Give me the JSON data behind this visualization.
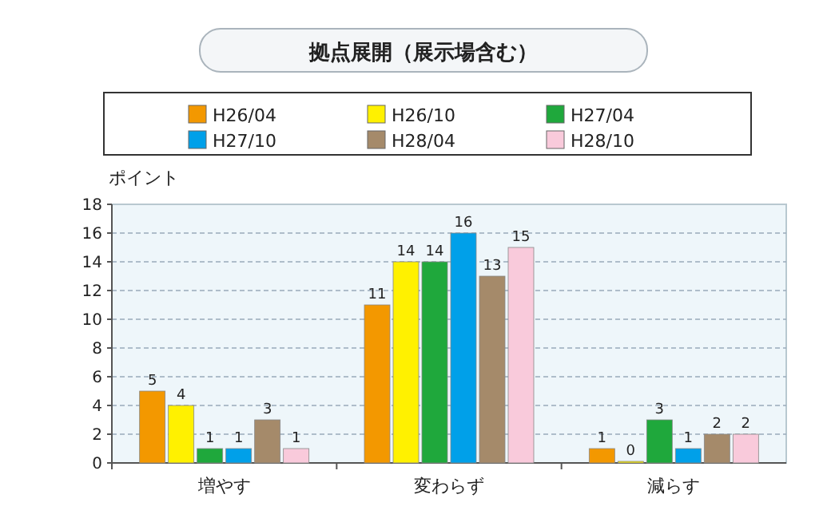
{
  "chart_data": {
    "type": "bar",
    "title": "拠点展開（展示場含む）",
    "ylabel": "ポイント",
    "categories": [
      "増やす",
      "変わらず",
      "減らす"
    ],
    "series": [
      {
        "name": "H26/04",
        "color": "#f39800",
        "values": [
          5,
          11,
          1
        ]
      },
      {
        "name": "H26/10",
        "color": "#fff100",
        "values": [
          4,
          14,
          0
        ]
      },
      {
        "name": "H27/04",
        "color": "#1fa83c",
        "values": [
          1,
          14,
          3
        ]
      },
      {
        "name": "H27/10",
        "color": "#00a0e9",
        "values": [
          1,
          16,
          1
        ]
      },
      {
        "name": "H28/04",
        "color": "#a58a6a",
        "values": [
          3,
          13,
          2
        ]
      },
      {
        "name": "H28/10",
        "color": "#f9cadb",
        "values": [
          1,
          15,
          2
        ]
      }
    ],
    "ylim": [
      0,
      18
    ],
    "yticks": [
      0,
      2,
      4,
      6,
      8,
      10,
      12,
      14,
      16,
      18
    ],
    "grid": "y",
    "legend": "top",
    "data_labels": true
  }
}
